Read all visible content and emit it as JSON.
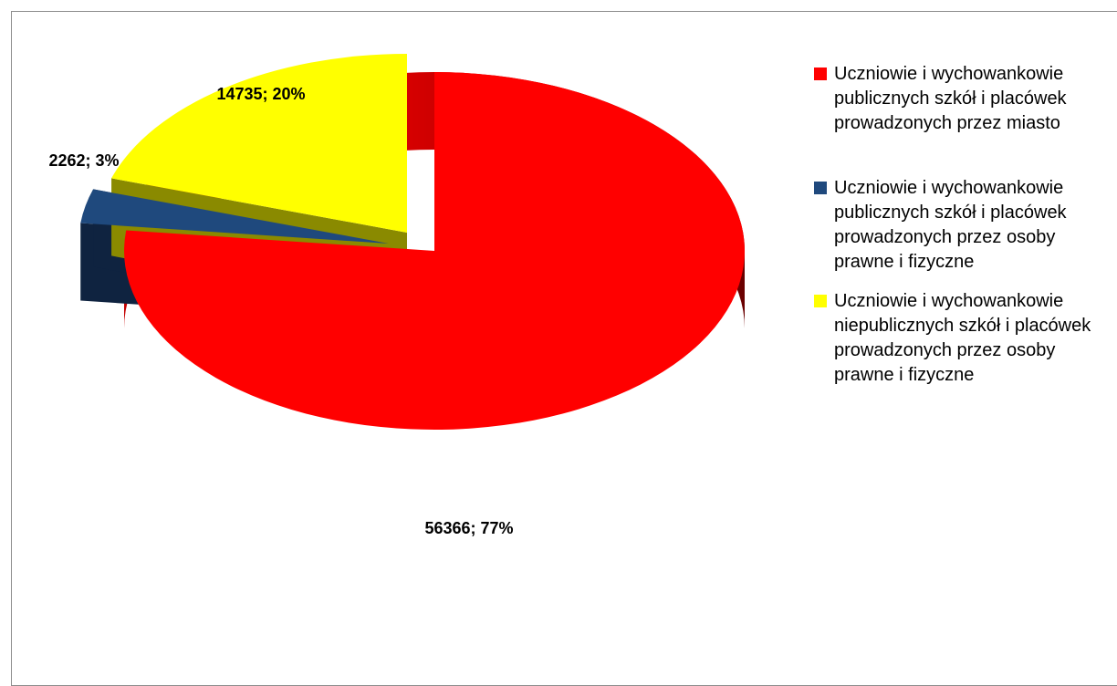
{
  "chart_data": {
    "type": "pie",
    "style": "3d-exploded",
    "legend_position": "right",
    "slices": [
      {
        "label": "Uczniowie i wychowankowie publicznych szkół i placówek prowadzonych przez miasto",
        "value": 56366,
        "percent": 77,
        "data_label": "56366; 77%",
        "color": "#ff0000",
        "legend_lines": [
          "Uczniowie i wychowankowie",
          "publicznych szkół i placówek",
          "prowadzonych przez miasto"
        ]
      },
      {
        "label": "Uczniowie i wychowankowie publicznych szkół i placówek prowadzonych przez osoby prawne i fizyczne",
        "value": 2262,
        "percent": 3,
        "data_label": "2262; 3%",
        "color": "#1f497d",
        "legend_lines": [
          "Uczniowie i wychowankowie",
          "publicznych szkół i placówek",
          "prowadzonych przez osoby",
          "prawne i fizyczne"
        ]
      },
      {
        "label": "Uczniowie i wychowankowie niepublicznych szkół i placówek prowadzonych przez osoby prawne i fizyczne",
        "value": 14735,
        "percent": 20,
        "data_label": "14735; 20%",
        "color": "#ffff00",
        "legend_lines": [
          "Uczniowie i wychowankowie",
          "niepublicznych szkół i placówek",
          "prowadzonych przez osoby",
          "prawne i fizyczne"
        ]
      }
    ]
  }
}
